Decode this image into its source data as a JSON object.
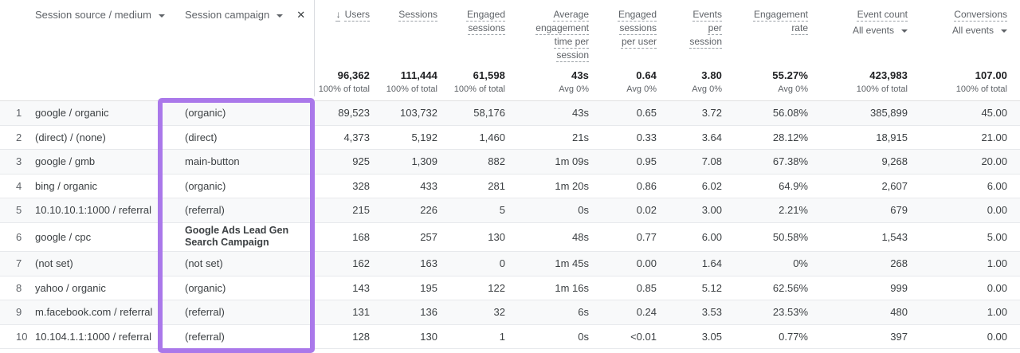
{
  "icons": {
    "sort_arrow": "↓",
    "close": "✕"
  },
  "colors": {
    "highlight": "#aa78ea",
    "odd_row_bg": "#f8f9fa",
    "total_text": "#202124",
    "secondary_text": "#5f6368"
  },
  "table": {
    "dimension_headers": [
      {
        "label": "Session source / medium"
      },
      {
        "label": "Session campaign"
      }
    ],
    "metric_headers": [
      {
        "label": "Users",
        "sorted": true,
        "total": "96,362",
        "subtotal": "100% of total"
      },
      {
        "label": "Sessions",
        "total": "111,444",
        "subtotal": "100% of total"
      },
      {
        "label": "Engaged sessions",
        "total": "61,598",
        "subtotal": "100% of total"
      },
      {
        "label": "Average engagement time per session",
        "total": "43s",
        "subtotal": "Avg 0%"
      },
      {
        "label": "Engaged sessions per user",
        "total": "0.64",
        "subtotal": "Avg 0%"
      },
      {
        "label": "Events per session",
        "total": "3.80",
        "subtotal": "Avg 0%"
      },
      {
        "label": "Engagement rate",
        "total": "55.27%",
        "subtotal": "Avg 0%"
      },
      {
        "label": "Event count",
        "filter": "All events",
        "total": "423,983",
        "subtotal": "100% of total"
      },
      {
        "label": "Conversions",
        "filter": "All events",
        "total": "107.00",
        "subtotal": "100% of total"
      }
    ],
    "rows": [
      {
        "num": "1",
        "source": "google / organic",
        "campaign": "(organic)",
        "values": [
          "89,523",
          "103,732",
          "58,176",
          "43s",
          "0.65",
          "3.72",
          "56.08%",
          "385,899",
          "45.00"
        ]
      },
      {
        "num": "2",
        "source": "(direct) / (none)",
        "campaign": "(direct)",
        "values": [
          "4,373",
          "5,192",
          "1,460",
          "21s",
          "0.33",
          "3.64",
          "28.12%",
          "18,915",
          "21.00"
        ]
      },
      {
        "num": "3",
        "source": "google / gmb",
        "campaign": "main-button",
        "values": [
          "925",
          "1,309",
          "882",
          "1m 09s",
          "0.95",
          "7.08",
          "67.38%",
          "9,268",
          "20.00"
        ]
      },
      {
        "num": "4",
        "source": "bing / organic",
        "campaign": "(organic)",
        "values": [
          "328",
          "433",
          "281",
          "1m 20s",
          "0.86",
          "6.02",
          "64.9%",
          "2,607",
          "6.00"
        ]
      },
      {
        "num": "5",
        "source": "10.10.10.1:1000 / referral",
        "campaign": "(referral)",
        "values": [
          "215",
          "226",
          "5",
          "0s",
          "0.02",
          "3.00",
          "2.21%",
          "679",
          "0.00"
        ]
      },
      {
        "num": "6",
        "source": "google / cpc",
        "campaign": "Google Ads Lead Gen Search Campaign",
        "campaign_bold": true,
        "two_line": true,
        "values": [
          "168",
          "257",
          "130",
          "48s",
          "0.77",
          "6.00",
          "50.58%",
          "1,543",
          "5.00"
        ]
      },
      {
        "num": "7",
        "source": "(not set)",
        "campaign": "(not set)",
        "values": [
          "162",
          "163",
          "0",
          "1m 45s",
          "0.00",
          "1.64",
          "0%",
          "268",
          "1.00"
        ]
      },
      {
        "num": "8",
        "source": "yahoo / organic",
        "campaign": "(organic)",
        "values": [
          "143",
          "195",
          "122",
          "1m 16s",
          "0.85",
          "5.12",
          "62.56%",
          "999",
          "0.00"
        ]
      },
      {
        "num": "9",
        "source": "m.facebook.com / referral",
        "campaign": "(referral)",
        "values": [
          "131",
          "136",
          "32",
          "6s",
          "0.24",
          "3.53",
          "23.53%",
          "480",
          "1.00"
        ]
      },
      {
        "num": "10",
        "source": "10.104.1.1:1000 / referral",
        "campaign": "(referral)",
        "values": [
          "128",
          "130",
          "1",
          "0s",
          "<0.01",
          "3.05",
          "0.77%",
          "397",
          "0.00"
        ]
      }
    ]
  }
}
